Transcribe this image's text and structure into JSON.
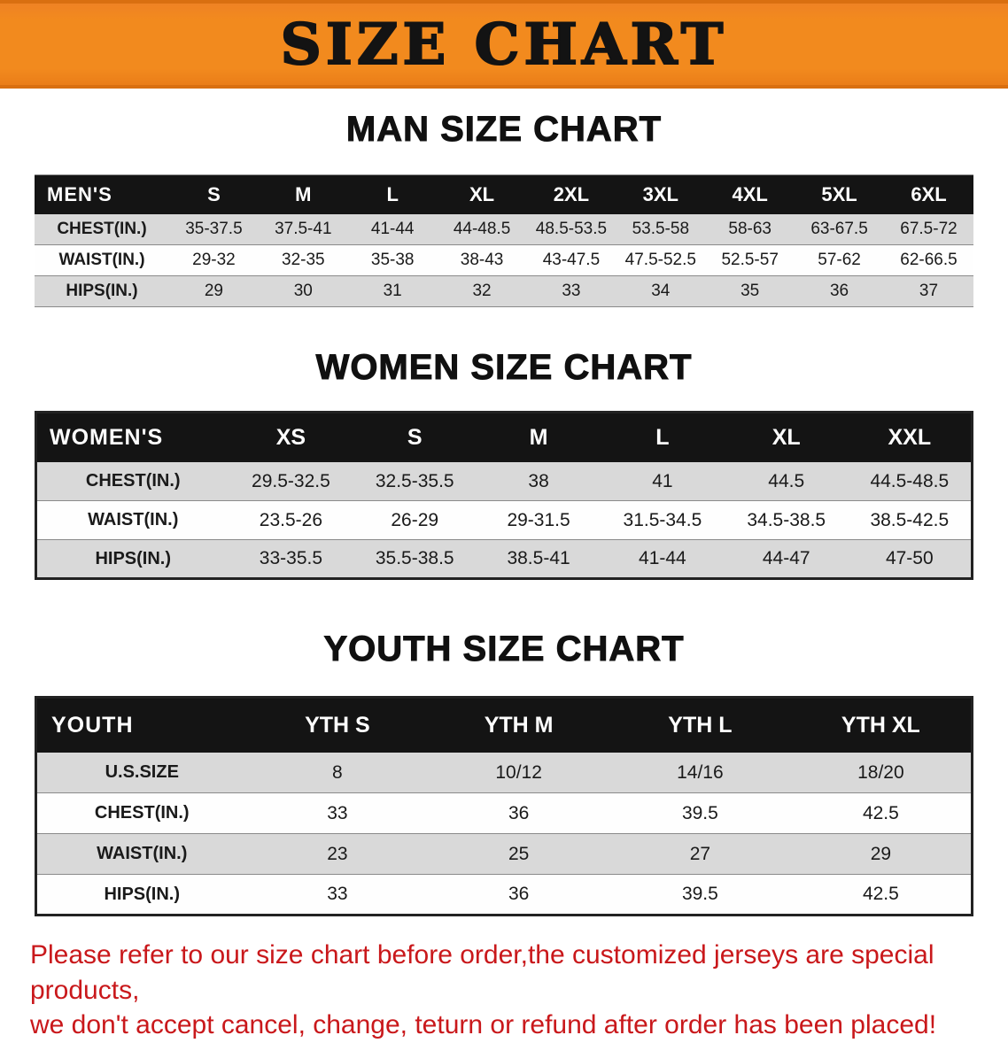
{
  "banner": {
    "title": "SIZE CHART"
  },
  "sections": {
    "men": {
      "heading": "MAN SIZE CHART"
    },
    "women": {
      "heading": "WOMEN SIZE CHART"
    },
    "youth": {
      "heading": "YOUTH SIZE CHART"
    }
  },
  "tables": {
    "men": {
      "name": "MEN'S",
      "sizes": [
        "S",
        "M",
        "L",
        "XL",
        "2XL",
        "3XL",
        "4XL",
        "5XL",
        "6XL"
      ],
      "rows": [
        {
          "label": "CHEST(IN.)",
          "values": [
            "35-37.5",
            "37.5-41",
            "41-44",
            "44-48.5",
            "48.5-53.5",
            "53.5-58",
            "58-63",
            "63-67.5",
            "67.5-72"
          ]
        },
        {
          "label": "WAIST(IN.)",
          "values": [
            "29-32",
            "32-35",
            "35-38",
            "38-43",
            "43-47.5",
            "47.5-52.5",
            "52.5-57",
            "57-62",
            "62-66.5"
          ]
        },
        {
          "label": "HIPS(IN.)",
          "values": [
            "29",
            "30",
            "31",
            "32",
            "33",
            "34",
            "35",
            "36",
            "37"
          ]
        }
      ]
    },
    "women": {
      "name": "WOMEN'S",
      "sizes": [
        "XS",
        "S",
        "M",
        "L",
        "XL",
        "XXL"
      ],
      "rows": [
        {
          "label": "CHEST(IN.)",
          "values": [
            "29.5-32.5",
            "32.5-35.5",
            "38",
            "41",
            "44.5",
            "44.5-48.5"
          ]
        },
        {
          "label": "WAIST(IN.)",
          "values": [
            "23.5-26",
            "26-29",
            "29-31.5",
            "31.5-34.5",
            "34.5-38.5",
            "38.5-42.5"
          ]
        },
        {
          "label": "HIPS(IN.)",
          "values": [
            "33-35.5",
            "35.5-38.5",
            "38.5-41",
            "41-44",
            "44-47",
            "47-50"
          ]
        }
      ]
    },
    "youth": {
      "name": "YOUTH",
      "sizes": [
        "YTH S",
        "YTH M",
        "YTH L",
        "YTH XL"
      ],
      "rows": [
        {
          "label": "U.S.SIZE",
          "values": [
            "8",
            "10/12",
            "14/16",
            "18/20"
          ]
        },
        {
          "label": "CHEST(IN.)",
          "values": [
            "33",
            "36",
            "39.5",
            "42.5"
          ]
        },
        {
          "label": "WAIST(IN.)",
          "values": [
            "23",
            "25",
            "27",
            "29"
          ]
        },
        {
          "label": "HIPS(IN.)",
          "values": [
            "33",
            "36",
            "39.5",
            "42.5"
          ]
        }
      ]
    }
  },
  "disclaimer": {
    "line1": "Please refer to our size chart before order,the customized jerseys are special products,",
    "line2": "we don't accept cancel, change, teturn or refund after order has been placed!"
  },
  "colors": {
    "banner_orange": "#f28a1e",
    "header_black": "#141414",
    "row_gray": "#d9d9d9",
    "disclaimer_red": "#c9181b"
  }
}
